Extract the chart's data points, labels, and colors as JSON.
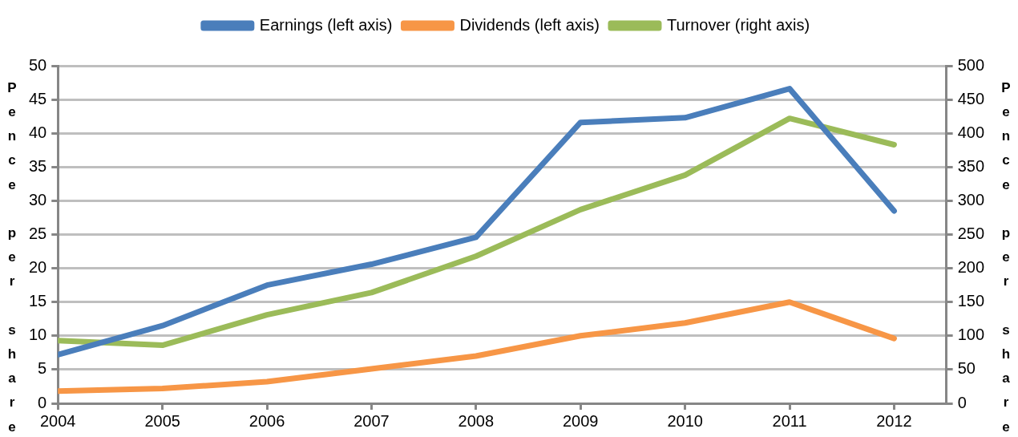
{
  "chart_data": {
    "type": "line",
    "ylabel": "Pence per share",
    "y2label": "Pence per share",
    "x": [
      2004,
      2005,
      2006,
      2007,
      2008,
      2009,
      2010,
      2011,
      2012
    ],
    "xlim": [
      2004,
      2012.5
    ],
    "xticks": [
      2004,
      2005,
      2006,
      2007,
      2008,
      2009,
      2010,
      2011,
      2012
    ],
    "ylim": [
      0,
      50
    ],
    "yticks": [
      0,
      5,
      10,
      15,
      20,
      25,
      30,
      35,
      40,
      45,
      50
    ],
    "y2lim": [
      0,
      500
    ],
    "y2ticks": [
      0,
      50,
      100,
      150,
      200,
      250,
      300,
      350,
      400,
      450,
      500
    ],
    "grid": "y",
    "legend": "top",
    "marker": "none",
    "line_style": "solid",
    "series": [
      {
        "name": "Earnings (left axis)",
        "color": "#4a7ebb",
        "values": [
          7.2,
          11.5,
          17.5,
          20.6,
          24.6,
          41.6,
          42.3,
          46.6,
          28.5
        ]
      },
      {
        "name": "Dividends (left axis)",
        "color": "#f79646",
        "values": [
          1.8,
          2.2,
          3.2,
          5.1,
          7.0,
          10.0,
          11.9,
          15.0,
          9.6
        ]
      },
      {
        "name": "Turnover (right axis)",
        "color": "#9bbb59",
        "axis": "y2",
        "values": [
          93,
          86,
          131,
          164,
          218,
          287,
          338,
          422,
          383
        ]
      }
    ]
  }
}
